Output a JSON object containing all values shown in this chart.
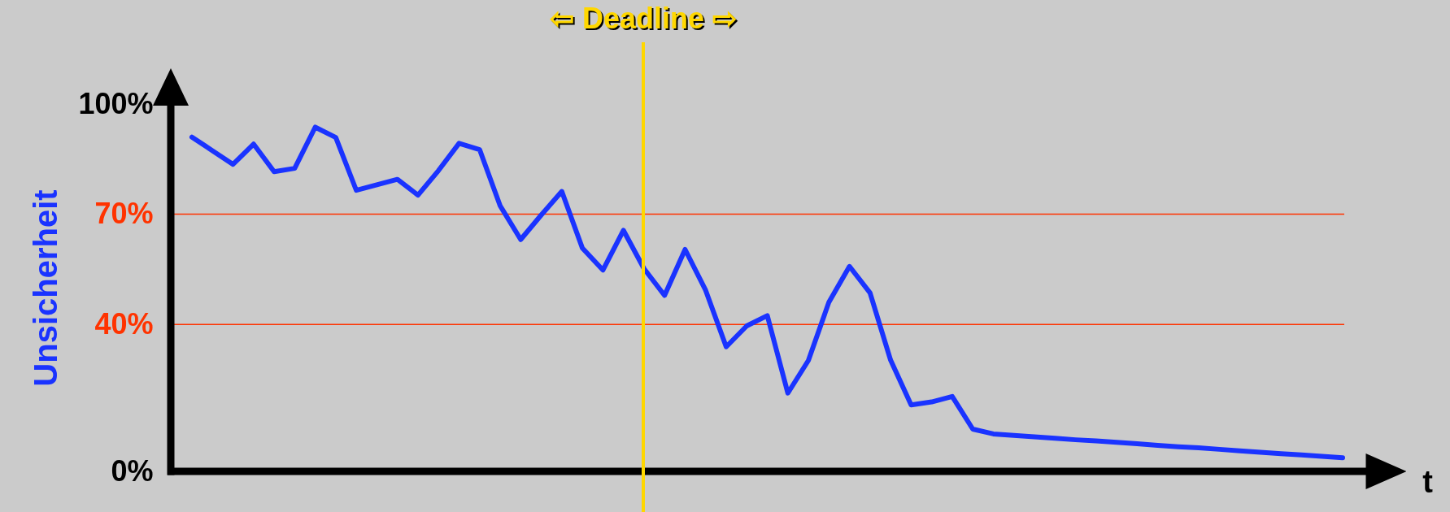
{
  "chart_data": {
    "type": "line",
    "ylabel": "Unsicherheit",
    "xlabel": "t",
    "categories": [
      null,
      null,
      null,
      null,
      null,
      null,
      null,
      null,
      null,
      null,
      null,
      null,
      null,
      null,
      null,
      null,
      null,
      null,
      null,
      null,
      null,
      null,
      null,
      null,
      null,
      null,
      null,
      null,
      null,
      null,
      null,
      null,
      null,
      null,
      null,
      null,
      null,
      null,
      null,
      null,
      null,
      null,
      null,
      null,
      null,
      null,
      null,
      null,
      null,
      null,
      null,
      null,
      null,
      null,
      null,
      null,
      null
    ],
    "ylim": [
      0,
      100
    ],
    "yticks": [
      {
        "value": 0,
        "label": "0%"
      },
      {
        "value": 40,
        "label": "40%"
      },
      {
        "value": 70,
        "label": "70%"
      },
      {
        "value": 100,
        "label": "100%"
      }
    ],
    "tick_labels": "y",
    "grid": false,
    "series": [
      {
        "color": "#1a33ff",
        "values": [
          91,
          87.3,
          83.6,
          89.1,
          81.6,
          82.5,
          93.7,
          90.9,
          76.5,
          78.0,
          79.5,
          75.2,
          81.9,
          89.3,
          87.6,
          72.3,
          63.1,
          69.8,
          76.2,
          60.8,
          54.8,
          65.6,
          55.2,
          47.9,
          60.4,
          49.3,
          33.9,
          39.6,
          42.4,
          21.3,
          30.2,
          46.1,
          55.8,
          48.6,
          30.3,
          18.1,
          18.9,
          20.4,
          11.5,
          10.2,
          9.8,
          9.4,
          9.0,
          8.6,
          8.3,
          7.9,
          7.5,
          7.1,
          6.7,
          6.4,
          6.0,
          5.6,
          5.2,
          4.8,
          4.5,
          4.1,
          3.7
        ]
      }
    ],
    "ref_lines": [
      {
        "axis": "y",
        "value": 70,
        "color": "#ff3300"
      },
      {
        "axis": "y",
        "value": 40,
        "color": "#ff3300"
      }
    ],
    "annotations": [
      "⇦ Deadline ⇨"
    ]
  }
}
